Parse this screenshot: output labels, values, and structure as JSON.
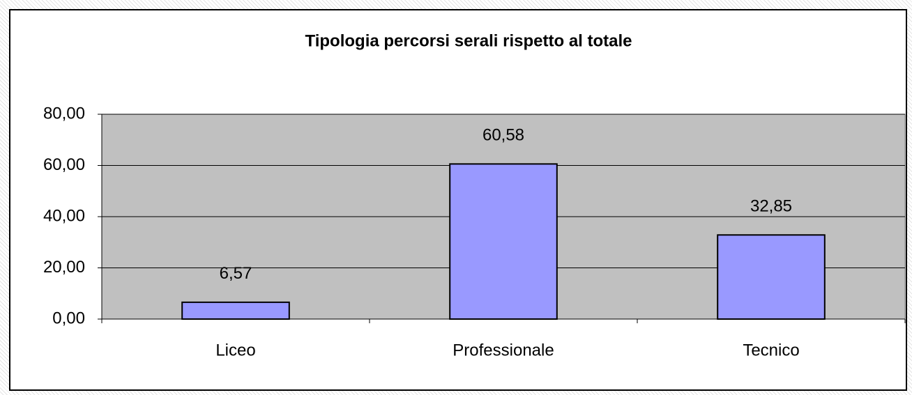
{
  "chart_data": {
    "type": "bar",
    "title": "Tipologia percorsi serali rispetto al totale",
    "categories": [
      "Liceo",
      "Professionale",
      "Tecnico"
    ],
    "values": [
      6.57,
      60.58,
      32.85
    ],
    "value_labels": [
      "6,57",
      "60,58",
      "32,85"
    ],
    "color": "#9999ff",
    "ylim": [
      0,
      80
    ],
    "yticks": [
      {
        "value": 0,
        "label": "0,00"
      },
      {
        "value": 20,
        "label": "20,00"
      },
      {
        "value": 40,
        "label": "40,00"
      },
      {
        "value": 60,
        "label": "60,00"
      },
      {
        "value": 80,
        "label": "80,00"
      }
    ],
    "grid": true
  }
}
